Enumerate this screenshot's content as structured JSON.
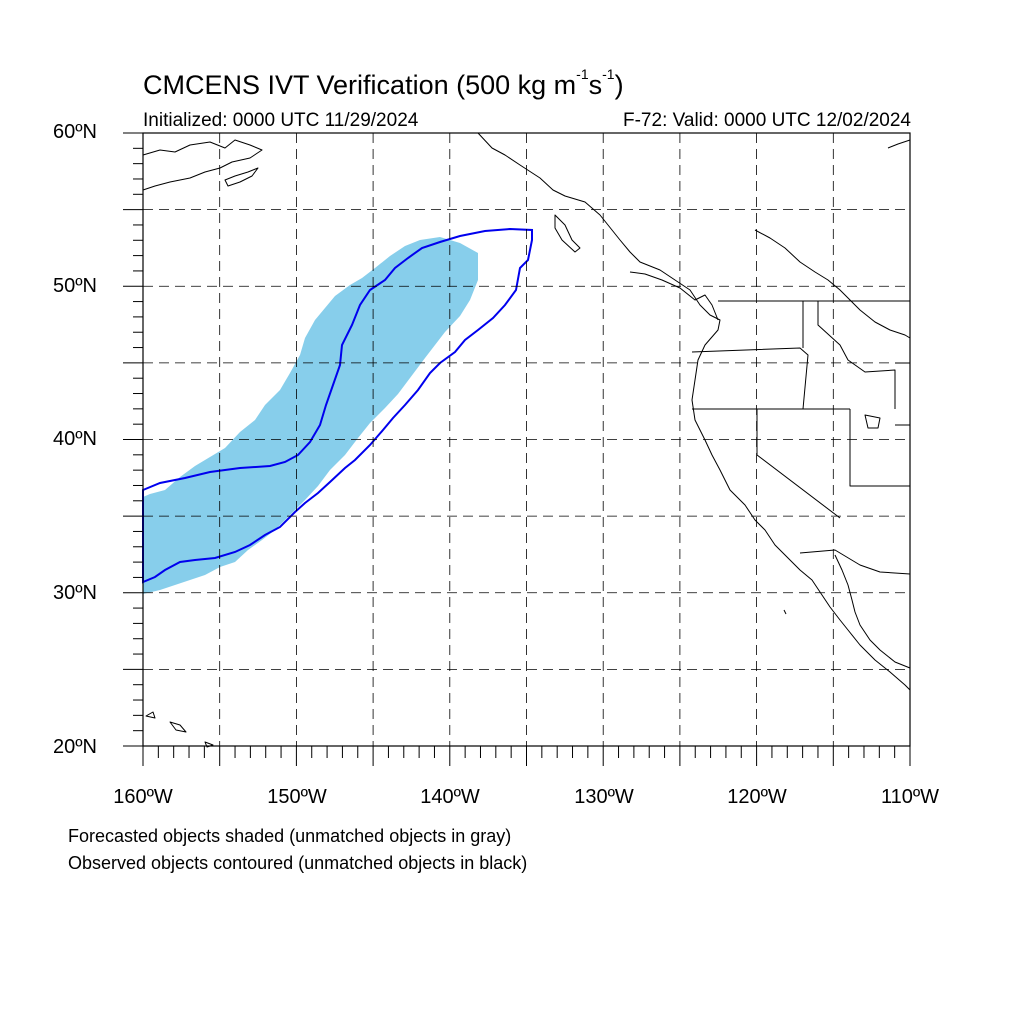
{
  "title": {
    "main": "CMCENS IVT Verification (500 kg m",
    "sup1": "-1",
    "mid": "s",
    "sup2": "-1",
    "end": ")"
  },
  "initialized": "Initialized: 0000 UTC 11/29/2024",
  "valid": "F-72: Valid: 0000 UTC 12/02/2024",
  "lat_labels": [
    "60ºN",
    "50ºN",
    "40ºN",
    "30ºN",
    "20ºN"
  ],
  "lon_labels": [
    "160ºW",
    "150ºW",
    "140ºW",
    "130ºW",
    "120ºW",
    "110ºW"
  ],
  "footnote_1": "Forecasted objects shaded (unmatched objects in gray)",
  "footnote_2": "Observed objects contoured (unmatched objects in black)",
  "map_extent": {
    "lon": [
      -160,
      -110
    ],
    "lat": [
      20,
      60
    ]
  },
  "colors": {
    "forecast_fill": "#87ceeb",
    "observed_contour": "#0000ee",
    "coastline": "#000000",
    "grid": "#000000"
  }
}
